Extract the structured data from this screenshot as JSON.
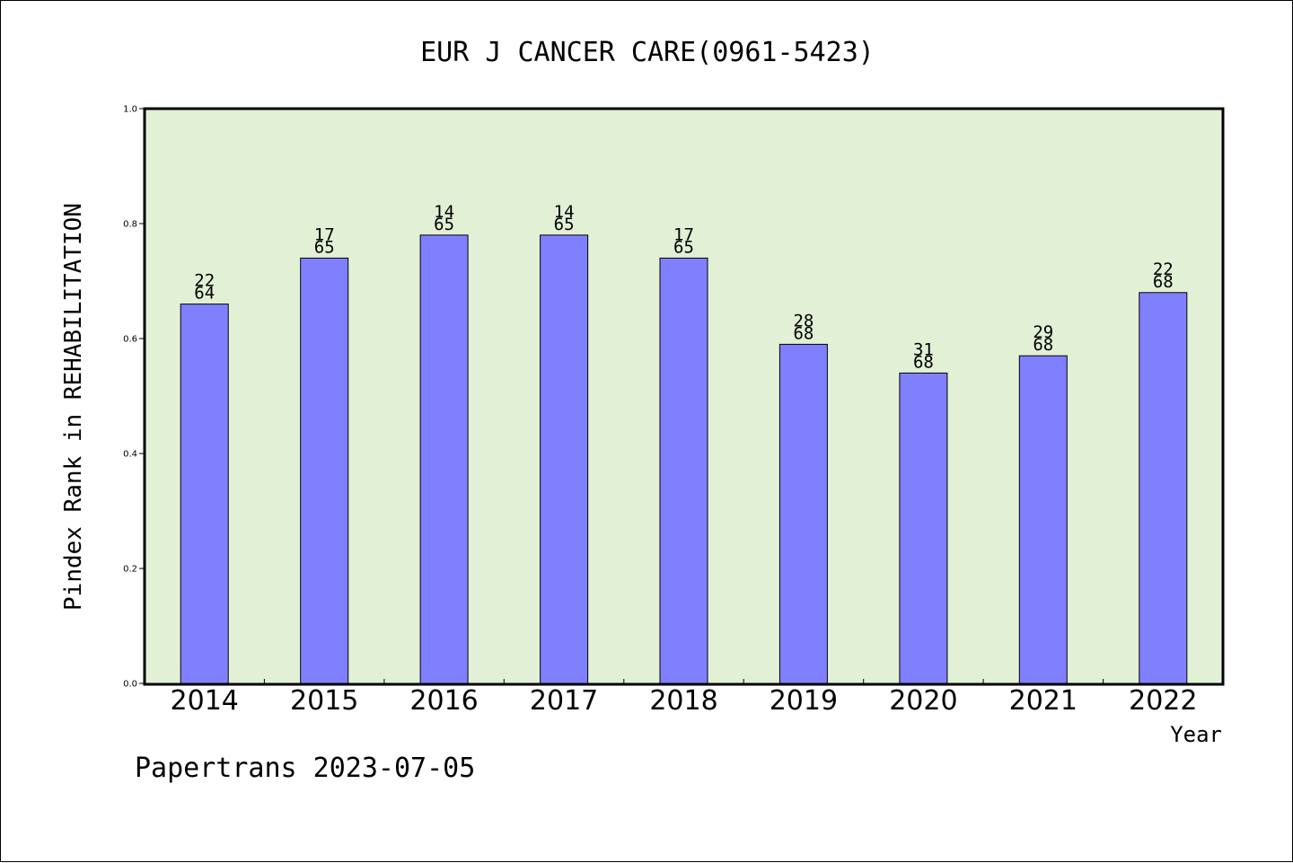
{
  "chart_data": {
    "type": "bar",
    "title": "EUR J CANCER CARE(0961-5423)",
    "xlabel": "Year",
    "ylabel": "Pindex Rank in REHABILITATION",
    "ylim": [
      0.0,
      1.0
    ],
    "yticks": [
      "0.0",
      "0.2",
      "0.4",
      "0.6",
      "0.8",
      "1.0"
    ],
    "categories": [
      "2014",
      "2015",
      "2016",
      "2017",
      "2018",
      "2019",
      "2020",
      "2021",
      "2022"
    ],
    "values": [
      0.66,
      0.74,
      0.78,
      0.78,
      0.74,
      0.59,
      0.54,
      0.57,
      0.68
    ],
    "ranks": [
      "22",
      "17",
      "14",
      "14",
      "17",
      "28",
      "31",
      "29",
      "22"
    ],
    "totals": [
      "64",
      "65",
      "65",
      "65",
      "65",
      "68",
      "68",
      "68",
      "68"
    ],
    "grid": false,
    "colors": {
      "plot_background": "#e2f0d6",
      "bar_fill": "#8080ff",
      "bar_stroke": "#000000"
    }
  },
  "footer": "Papertrans 2023-07-05"
}
